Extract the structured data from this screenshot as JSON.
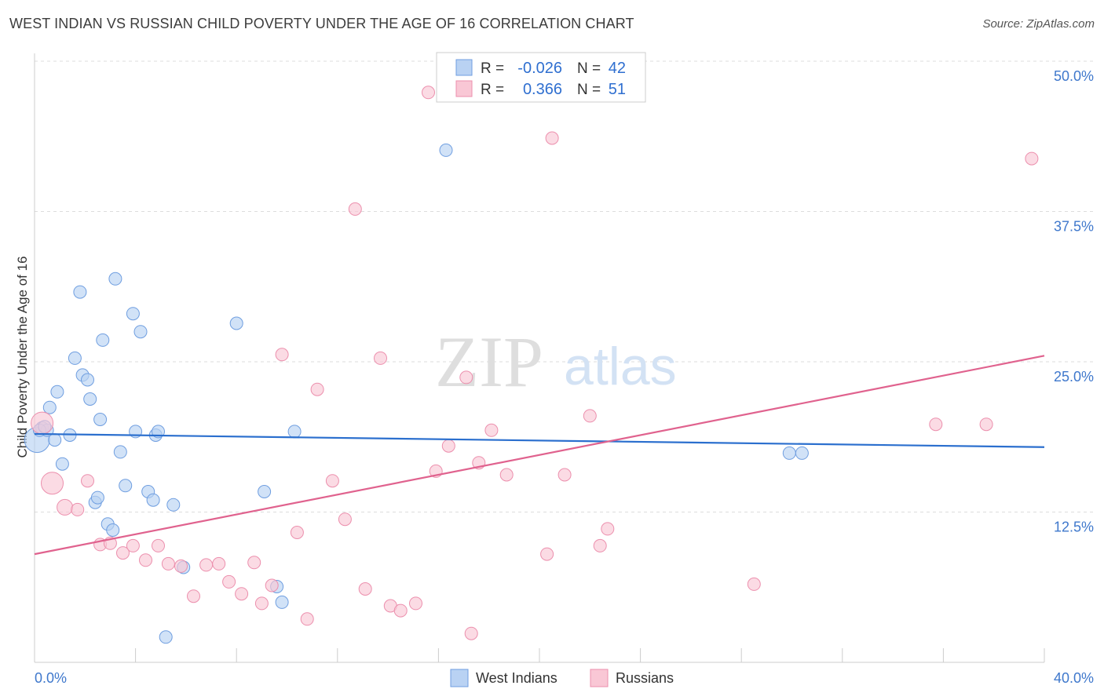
{
  "header": {
    "title": "WEST INDIAN VS RUSSIAN CHILD POVERTY UNDER THE AGE OF 16 CORRELATION CHART",
    "source": "Source: ZipAtlas.com"
  },
  "watermark": {
    "zip": "ZIP",
    "atlas": "atlas"
  },
  "stats": {
    "r_label": "R =",
    "n_label": "N =",
    "rows": [
      {
        "r": "-0.026",
        "n": "42",
        "color": "#b9d2f3",
        "stroke": "#6f9ee0"
      },
      {
        "r": "0.366",
        "n": "51",
        "color": "#f9c7d5",
        "stroke": "#ec8fad"
      }
    ]
  },
  "chart_data": {
    "type": "scatter",
    "title": "WEST INDIAN VS RUSSIAN CHILD POVERTY UNDER THE AGE OF 16 CORRELATION CHART",
    "xlabel": "",
    "ylabel": "Child Poverty Under the Age of 16",
    "xlim": [
      0,
      40
    ],
    "ylim": [
      0,
      50
    ],
    "x_tick_labels": [
      "0.0%",
      "40.0%"
    ],
    "y_ticks": [
      12.5,
      25.0,
      37.5,
      50.0
    ],
    "y_tick_labels": [
      "12.5%",
      "25.0%",
      "37.5%",
      "50.0%"
    ],
    "grid": true,
    "legend_position": "bottom-center",
    "series": [
      {
        "name": "West Indians",
        "color": "#b9d2f3",
        "stroke": "#6f9ee0",
        "line_color": "#2b6fce",
        "trend": [
          [
            0,
            19.0
          ],
          [
            40,
            17.9
          ]
        ],
        "points": [
          [
            0.1,
            18.5,
            16
          ],
          [
            0.3,
            19.5,
            8
          ],
          [
            0.5,
            19.3,
            8
          ],
          [
            0.6,
            21.2,
            8
          ],
          [
            0.8,
            18.5,
            8
          ],
          [
            0.9,
            22.5,
            8
          ],
          [
            1.1,
            16.5,
            8
          ],
          [
            1.4,
            18.9,
            8
          ],
          [
            1.6,
            25.3,
            8
          ],
          [
            1.8,
            30.8,
            8
          ],
          [
            1.9,
            23.9,
            8
          ],
          [
            2.1,
            23.5,
            8
          ],
          [
            2.2,
            21.9,
            8
          ],
          [
            2.4,
            13.3,
            8
          ],
          [
            2.5,
            13.7,
            8
          ],
          [
            2.6,
            20.2,
            8
          ],
          [
            2.7,
            26.8,
            8
          ],
          [
            2.9,
            11.5,
            8
          ],
          [
            3.1,
            11.0,
            8
          ],
          [
            3.2,
            31.9,
            8
          ],
          [
            3.4,
            17.5,
            8
          ],
          [
            3.6,
            14.7,
            8
          ],
          [
            3.9,
            29.0,
            8
          ],
          [
            4.0,
            19.2,
            8
          ],
          [
            4.2,
            27.5,
            8
          ],
          [
            4.5,
            14.2,
            8
          ],
          [
            4.7,
            13.5,
            8
          ],
          [
            4.8,
            18.9,
            8
          ],
          [
            4.9,
            19.2,
            8
          ],
          [
            5.2,
            2.1,
            8
          ],
          [
            5.5,
            13.1,
            8
          ],
          [
            5.9,
            7.9,
            8
          ],
          [
            8.0,
            28.2,
            8
          ],
          [
            9.1,
            14.2,
            8
          ],
          [
            9.6,
            6.3,
            8
          ],
          [
            9.8,
            5.0,
            8
          ],
          [
            10.3,
            19.2,
            8
          ],
          [
            16.3,
            42.6,
            8
          ],
          [
            29.9,
            17.4,
            8
          ],
          [
            30.4,
            17.4,
            8
          ],
          [
            0.2,
            19.3,
            8
          ],
          [
            0.4,
            19.6,
            8
          ]
        ]
      },
      {
        "name": "Russians",
        "color": "#f9c7d5",
        "stroke": "#ec8fad",
        "line_color": "#e0628e",
        "trend": [
          [
            0,
            9.0
          ],
          [
            40,
            25.5
          ]
        ],
        "points": [
          [
            0.3,
            19.9,
            14
          ],
          [
            0.7,
            14.9,
            14
          ],
          [
            1.2,
            12.9,
            10
          ],
          [
            1.7,
            12.7,
            8
          ],
          [
            2.1,
            15.1,
            8
          ],
          [
            2.6,
            9.8,
            8
          ],
          [
            3.0,
            9.9,
            8
          ],
          [
            3.5,
            9.1,
            8
          ],
          [
            3.9,
            9.7,
            8
          ],
          [
            4.4,
            8.5,
            8
          ],
          [
            4.9,
            9.7,
            8
          ],
          [
            5.3,
            8.2,
            8
          ],
          [
            5.8,
            8.0,
            8
          ],
          [
            6.3,
            5.5,
            8
          ],
          [
            6.8,
            8.1,
            8
          ],
          [
            7.3,
            8.2,
            8
          ],
          [
            7.7,
            6.7,
            8
          ],
          [
            8.2,
            5.7,
            8
          ],
          [
            8.7,
            8.3,
            8
          ],
          [
            9.0,
            4.9,
            8
          ],
          [
            9.4,
            6.4,
            8
          ],
          [
            9.8,
            25.6,
            8
          ],
          [
            10.4,
            10.8,
            8
          ],
          [
            10.8,
            3.6,
            8
          ],
          [
            11.2,
            22.7,
            8
          ],
          [
            11.8,
            15.1,
            8
          ],
          [
            12.3,
            11.9,
            8
          ],
          [
            12.7,
            37.7,
            8
          ],
          [
            13.1,
            6.1,
            8
          ],
          [
            13.7,
            25.3,
            8
          ],
          [
            14.1,
            4.7,
            8
          ],
          [
            14.5,
            4.3,
            8
          ],
          [
            15.1,
            4.9,
            8
          ],
          [
            15.6,
            47.4,
            8
          ],
          [
            15.9,
            15.9,
            8
          ],
          [
            16.4,
            18.0,
            8
          ],
          [
            17.1,
            23.7,
            8
          ],
          [
            17.3,
            2.4,
            8
          ],
          [
            17.6,
            16.6,
            8
          ],
          [
            18.1,
            19.3,
            8
          ],
          [
            18.7,
            15.6,
            8
          ],
          [
            20.3,
            9.0,
            8
          ],
          [
            20.5,
            43.6,
            8
          ],
          [
            21.0,
            15.6,
            8
          ],
          [
            22.0,
            20.5,
            8
          ],
          [
            22.4,
            9.7,
            8
          ],
          [
            22.7,
            11.1,
            8
          ],
          [
            28.5,
            6.5,
            8
          ],
          [
            35.7,
            19.8,
            8
          ],
          [
            37.7,
            19.8,
            8
          ],
          [
            39.5,
            41.9,
            8
          ]
        ]
      }
    ]
  }
}
